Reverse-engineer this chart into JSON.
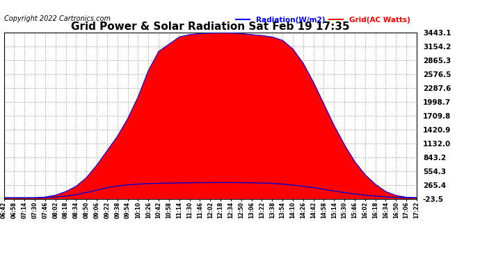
{
  "title": "Grid Power & Solar Radiation Sat Feb 19 17:35",
  "copyright": "Copyright 2022 Cartronics.com",
  "legend_radiation": "Radiation(W/m2)",
  "legend_grid": "Grid(AC Watts)",
  "ytick_values": [
    3443.1,
    3154.2,
    2865.3,
    2576.5,
    2287.6,
    1998.7,
    1709.8,
    1420.9,
    1132.0,
    843.2,
    554.3,
    265.4,
    -23.5
  ],
  "ymin": -23.5,
  "ymax": 3443.1,
  "bg_color": "#ffffff",
  "grid_color": "#aaaaaa",
  "fill_color": "#ff0000",
  "radiation_line_color": "#0000ff",
  "grid_line_color": "#0000cd",
  "title_fontsize": 11,
  "copyright_fontsize": 7,
  "legend_fontsize": 7.5,
  "ytick_fontsize": 7.5,
  "xtick_fontsize": 5.5,
  "xtick_labels": [
    "06:42",
    "06:58",
    "07:14",
    "07:30",
    "07:46",
    "08:02",
    "08:18",
    "08:34",
    "08:50",
    "09:06",
    "09:22",
    "09:38",
    "09:54",
    "10:10",
    "10:26",
    "10:42",
    "10:58",
    "11:14",
    "11:30",
    "11:46",
    "12:02",
    "12:18",
    "12:34",
    "12:50",
    "13:06",
    "13:22",
    "13:38",
    "13:54",
    "14:10",
    "14:26",
    "14:42",
    "14:58",
    "15:14",
    "15:30",
    "15:46",
    "16:02",
    "16:18",
    "16:34",
    "16:50",
    "17:06",
    "17:22"
  ],
  "radiation_data": [
    0,
    0,
    0,
    0,
    15,
    55,
    130,
    240,
    420,
    680,
    980,
    1280,
    1650,
    2100,
    2650,
    3050,
    3200,
    3350,
    3400,
    3420,
    3430,
    3440,
    3435,
    3420,
    3400,
    3380,
    3350,
    3280,
    3100,
    2800,
    2400,
    1950,
    1500,
    1100,
    750,
    480,
    280,
    130,
    50,
    10,
    0
  ],
  "grid_data": [
    0,
    0,
    0,
    0,
    5,
    15,
    35,
    65,
    110,
    160,
    210,
    245,
    270,
    285,
    295,
    300,
    305,
    310,
    312,
    315,
    316,
    317,
    316,
    315,
    312,
    308,
    300,
    285,
    265,
    240,
    210,
    175,
    140,
    108,
    78,
    55,
    35,
    18,
    8,
    2,
    0
  ]
}
